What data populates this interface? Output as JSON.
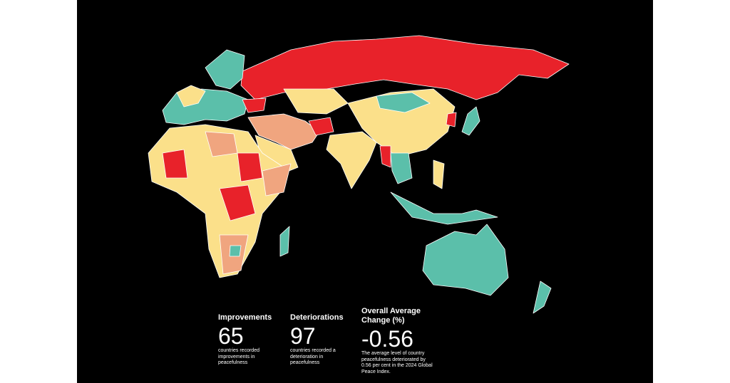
{
  "stats": [
    {
      "heading": "Improvements",
      "value": 65,
      "description": "countries recorded improvements in peacefulness"
    },
    {
      "heading": "Deteriorations",
      "value": 97,
      "description": "countries recorded a deterioration in peacefulness"
    },
    {
      "heading": "Overall Average Change (%)",
      "value": -0.56,
      "description": "The average level of country peacefulness deteriorated by 0.56 per cent in the 2024 Global Peace Index."
    }
  ]
}
